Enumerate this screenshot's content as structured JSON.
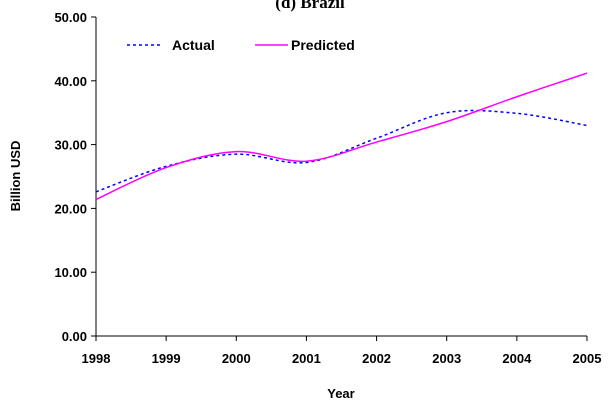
{
  "chart_data": {
    "type": "line",
    "title": "(d) Brazil",
    "xlabel": "Year",
    "ylabel": "Billion USD",
    "x": [
      1998,
      1999,
      2000,
      2001,
      2002,
      2003,
      2004,
      2005
    ],
    "xlim": [
      1998,
      2005
    ],
    "ylim": [
      0,
      50
    ],
    "yticks": [
      "0.00",
      "10.00",
      "20.00",
      "30.00",
      "40.00",
      "50.00"
    ],
    "xticks": [
      "1998",
      "1999",
      "2000",
      "2001",
      "2002",
      "2003",
      "2004",
      "2005"
    ],
    "grid": false,
    "legend_position": "top-left",
    "series": [
      {
        "name": "Actual",
        "values": [
          22.6,
          26.6,
          28.5,
          27.2,
          31.0,
          35.0,
          34.9,
          33.0
        ],
        "color": "#0000ff",
        "style": "dotted"
      },
      {
        "name": "Predicted",
        "values": [
          21.4,
          26.4,
          28.9,
          27.4,
          30.4,
          33.6,
          37.5,
          41.2
        ],
        "color": "#ff00ff",
        "style": "solid"
      }
    ]
  }
}
